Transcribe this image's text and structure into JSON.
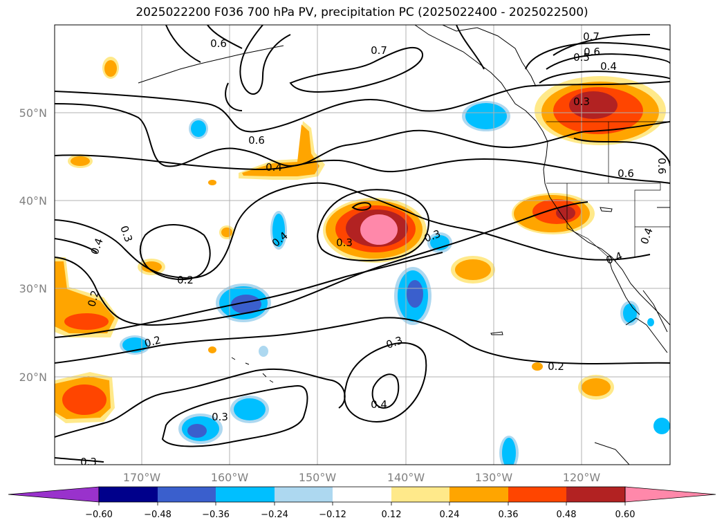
{
  "title": "2025022200 F036 700 hPa PV, precipitation PC (2025022400 - 2025022500)",
  "lat_ticks": [
    "50°N",
    "40°N",
    "30°N",
    "20°N"
  ],
  "lon_ticks": [
    "170°W",
    "160°W",
    "150°W",
    "140°W",
    "130°W",
    "120°W"
  ],
  "contour_labels": [
    {
      "text": "0.6"
    },
    {
      "text": "0.7"
    },
    {
      "text": "0.7"
    },
    {
      "text": "0.6"
    },
    {
      "text": "0.5"
    },
    {
      "text": "0.4"
    },
    {
      "text": "0.3"
    },
    {
      "text": "0.6"
    },
    {
      "text": "0.4"
    },
    {
      "text": "0.6"
    },
    {
      "text": "0.6"
    },
    {
      "text": "0.3"
    },
    {
      "text": "0.4"
    },
    {
      "text": "0.3"
    },
    {
      "text": "0.3"
    },
    {
      "text": "0.4"
    },
    {
      "text": "0.2"
    },
    {
      "text": "0.4"
    },
    {
      "text": "0.4"
    },
    {
      "text": "0.2"
    },
    {
      "text": "0.2"
    },
    {
      "text": "0.3"
    },
    {
      "text": "0.2"
    },
    {
      "text": "0.4"
    },
    {
      "text": "0.3"
    },
    {
      "text": "0.3"
    }
  ],
  "colorbar": {
    "tick_labels": [
      "−0.60",
      "−0.48",
      "−0.36",
      "−0.24",
      "−0.12",
      "0.12",
      "0.24",
      "0.36",
      "0.48",
      "0.60"
    ],
    "colors": [
      "#9932cc",
      "#00008b",
      "#3a5fcd",
      "#00bfff",
      "#add8f0",
      "#ffffff",
      "#ffe98a",
      "#ffa500",
      "#ff4500",
      "#b22222",
      "#ff88aa"
    ]
  }
}
